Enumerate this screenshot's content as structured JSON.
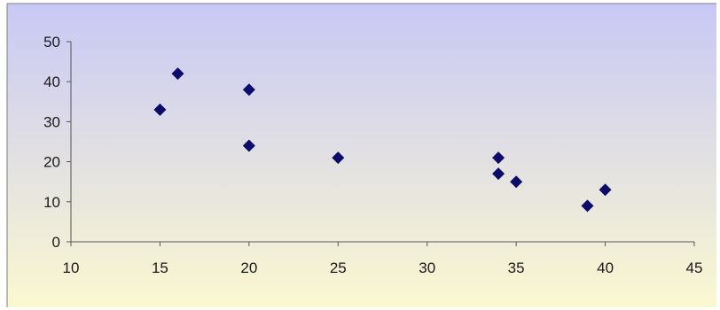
{
  "chart_data": {
    "type": "scatter",
    "title": "",
    "xlabel": "",
    "ylabel": "",
    "xlim": [
      10,
      45
    ],
    "ylim": [
      0,
      50
    ],
    "x_ticks": [
      "10",
      "15",
      "20",
      "25",
      "30",
      "35",
      "40",
      "45"
    ],
    "y_ticks": [
      "0",
      "10",
      "20",
      "30",
      "40",
      "50"
    ],
    "grid": false,
    "legend": "none",
    "series": [
      {
        "points": [
          {
            "x": 15,
            "y": 33
          },
          {
            "x": 16,
            "y": 42
          },
          {
            "x": 20,
            "y": 38
          },
          {
            "x": 20,
            "y": 24
          },
          {
            "x": 25,
            "y": 21
          },
          {
            "x": 34,
            "y": 21
          },
          {
            "x": 34,
            "y": 17
          },
          {
            "x": 35,
            "y": 15
          },
          {
            "x": 39,
            "y": 9
          },
          {
            "x": 40,
            "y": 13
          }
        ]
      }
    ],
    "colors": {
      "marker": "#0b0b6b",
      "axis": "#555555",
      "background_top": "#c8c8f6",
      "background_bottom": "#fbf8d0",
      "border": "#7f7f7f"
    }
  }
}
